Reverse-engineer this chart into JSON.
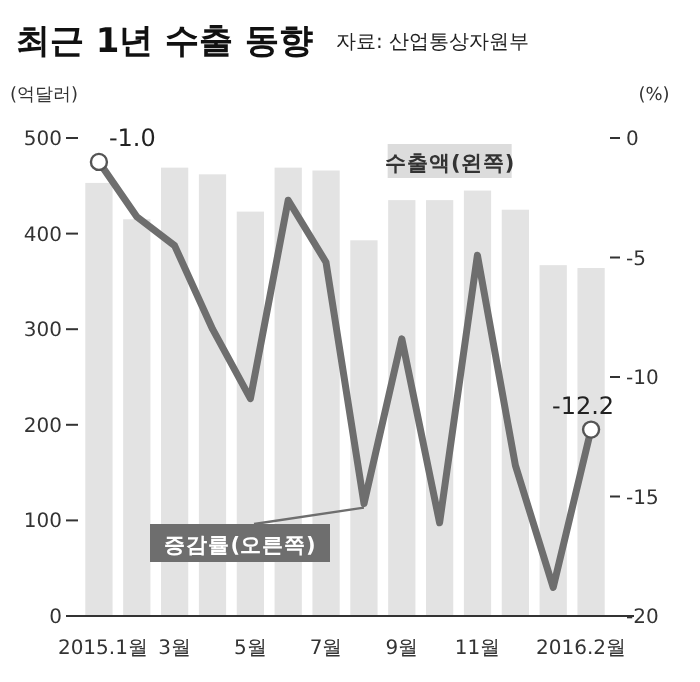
{
  "chart_data": {
    "type": "bar",
    "title": "최근 1년 수출 동향",
    "annotations": [
      "자료: 산업통상자원부"
    ],
    "ylabel": "(억달러)",
    "y2label": "(%)",
    "categories": [
      "2015.1월",
      null,
      "3월",
      null,
      "5월",
      null,
      "7월",
      null,
      "9월",
      null,
      "11월",
      null,
      null,
      "2016.2월"
    ],
    "series": [
      {
        "name": "수출액(왼쪽)",
        "color": "#e3e3e3",
        "values": [
          453,
          415,
          469,
          462,
          423,
          469,
          466,
          393,
          435,
          435,
          445,
          425,
          367,
          364
        ]
      },
      {
        "name": "증감률(오른쪽)",
        "type": "line",
        "axis": "y2",
        "color": "#6e6e6e",
        "values": [
          -1.0,
          -3.3,
          -4.5,
          -8.0,
          -10.9,
          -2.6,
          -5.2,
          -15.3,
          -8.4,
          -16.1,
          -4.9,
          -13.7,
          -18.8,
          -12.2
        ],
        "value_labels": [
          "-1.0",
          null,
          null,
          null,
          null,
          null,
          null,
          null,
          null,
          null,
          null,
          null,
          null,
          "-12.2"
        ]
      }
    ],
    "ylim": [
      0,
      500
    ],
    "yticks": [
      0,
      100,
      200,
      300,
      400,
      500
    ],
    "y2lim": [
      -20,
      0
    ],
    "y2ticks": [
      0,
      -5,
      -10,
      -15,
      -20
    ],
    "grid": false
  }
}
